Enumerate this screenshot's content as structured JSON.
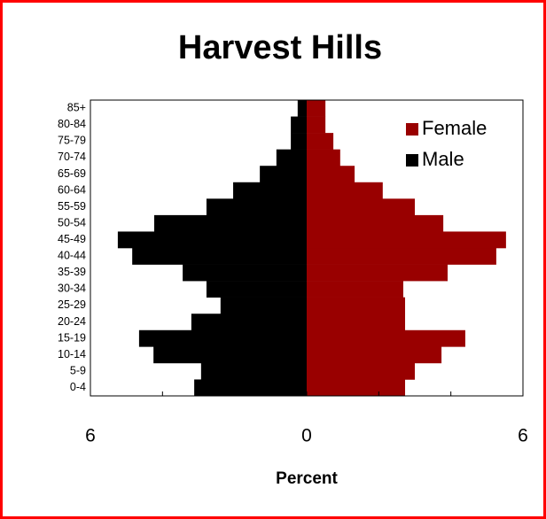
{
  "chart_data": {
    "type": "pyramid",
    "title": "Harvest Hills",
    "xlabel": "Percent",
    "categories": [
      "0-4",
      "5-9",
      "10-14",
      "15-19",
      "20-24",
      "25-29",
      "30-34",
      "35-39",
      "40-44",
      "45-49",
      "50-54",
      "55-59",
      "60-64",
      "65-69",
      "70-74",
      "75-79",
      "80-84",
      "85+"
    ],
    "series": [
      {
        "name": "Female",
        "color": "#990000",
        "values": [
          2.73,
          3.0,
          3.74,
          4.4,
          2.73,
          2.73,
          2.68,
          3.91,
          5.26,
          5.53,
          3.79,
          3.0,
          2.11,
          1.33,
          0.93,
          0.74,
          0.52,
          0.52
        ]
      },
      {
        "name": "Male",
        "color": "#000000",
        "values": [
          -3.12,
          -2.93,
          -4.25,
          -4.65,
          -3.2,
          -2.39,
          -2.78,
          -3.44,
          -4.84,
          -5.24,
          -4.23,
          -2.78,
          -2.04,
          -1.3,
          -0.84,
          -0.44,
          -0.44,
          -0.25
        ]
      }
    ],
    "xlim": [
      -6,
      6
    ],
    "xticks": [
      {
        "value": -6,
        "label": "6"
      },
      0,
      6
    ],
    "xminor": [
      -4,
      -2,
      2,
      4
    ],
    "legend": "upper right"
  }
}
